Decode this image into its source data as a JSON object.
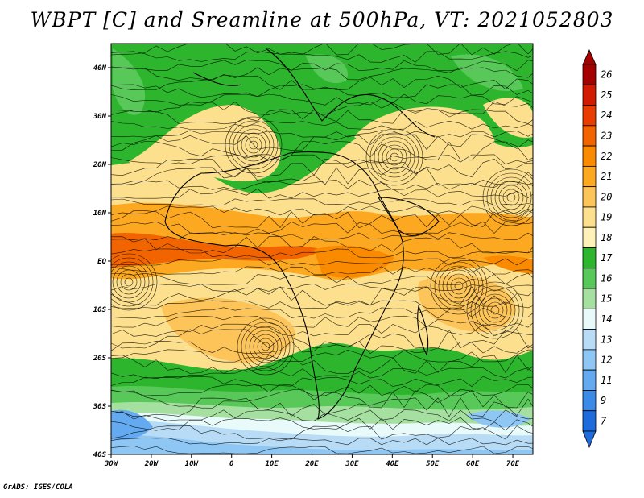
{
  "title": "WBPT [C] and Sreamline at 500hPa, VT: 2021052803",
  "credit": "GrADS: IGES/COLA",
  "map": {
    "lon_range": [
      -30,
      75
    ],
    "lat_range": [
      -40,
      45
    ],
    "lat_ticks": [
      {
        "value": 40,
        "label": "40N"
      },
      {
        "value": 30,
        "label": "30N"
      },
      {
        "value": 20,
        "label": "20N"
      },
      {
        "value": 10,
        "label": "10N"
      },
      {
        "value": 0,
        "label": "EQ"
      },
      {
        "value": -10,
        "label": "10S"
      },
      {
        "value": -20,
        "label": "20S"
      },
      {
        "value": -30,
        "label": "30S"
      },
      {
        "value": -40,
        "label": "40S"
      }
    ],
    "lon_ticks": [
      {
        "value": -30,
        "label": "30W"
      },
      {
        "value": -20,
        "label": "20W"
      },
      {
        "value": -10,
        "label": "10W"
      },
      {
        "value": 0,
        "label": "0"
      },
      {
        "value": 10,
        "label": "10E"
      },
      {
        "value": 20,
        "label": "20E"
      },
      {
        "value": 30,
        "label": "30E"
      },
      {
        "value": 40,
        "label": "40E"
      },
      {
        "value": 50,
        "label": "50E"
      },
      {
        "value": 60,
        "label": "60E"
      },
      {
        "value": 70,
        "label": "70E"
      }
    ]
  },
  "colorbar": {
    "labels": [
      "26",
      "25",
      "24",
      "23",
      "22",
      "21",
      "20",
      "19",
      "18",
      "17",
      "16",
      "15",
      "14",
      "13",
      "12",
      "11",
      "9",
      "7"
    ],
    "colors": [
      "#a50000",
      "#d21a00",
      "#e83c00",
      "#f26400",
      "#fa8a00",
      "#fca820",
      "#fdc45a",
      "#fde08e",
      "#fff2b8",
      "#2db52d",
      "#58c858",
      "#a6e0a0",
      "#e8fafa",
      "#b8dcf6",
      "#8ec6f4",
      "#64aaf0",
      "#3c8ae8",
      "#1e6cdc"
    ]
  }
}
